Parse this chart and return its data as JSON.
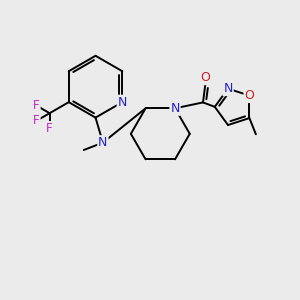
{
  "bg_color": "#ebebeb",
  "atom_colors": {
    "N": "#2222cc",
    "O": "#cc2222",
    "F": "#cc22cc",
    "C": "#000000"
  },
  "bond_color": "#000000",
  "bond_width": 1.4,
  "fig_width": 3.0,
  "fig_height": 3.0,
  "dpi": 100,
  "xlim": [
    0,
    10
  ],
  "ylim": [
    0,
    10
  ]
}
